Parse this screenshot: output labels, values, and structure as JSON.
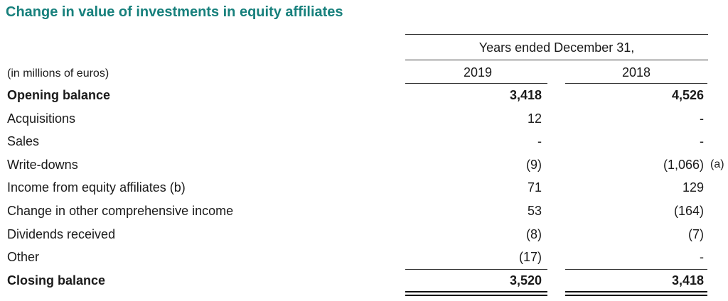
{
  "title": "Change in value of investments in equity affiliates",
  "header": {
    "period": "Years ended December 31,",
    "unit": "(in millions of euros)",
    "years": [
      "2019",
      "2018"
    ]
  },
  "table": {
    "rows": [
      {
        "label": "Opening balance",
        "values": [
          "3,418",
          "4,526"
        ]
      },
      {
        "label": "Acquisitions",
        "values": [
          "12",
          "-"
        ]
      },
      {
        "label": "Sales",
        "values": [
          "-",
          "-"
        ]
      },
      {
        "label": "Write-downs",
        "values": [
          "(9)",
          "(1,066)"
        ],
        "note": "(a)"
      },
      {
        "label": "Income from equity affiliates (b)",
        "values": [
          "71",
          "129"
        ]
      },
      {
        "label": "Change in other comprehensive income",
        "values": [
          "53",
          "(164)"
        ]
      },
      {
        "label": "Dividends received",
        "values": [
          "(8)",
          "(7)"
        ]
      },
      {
        "label": "Other",
        "values": [
          "(17)",
          "-"
        ]
      },
      {
        "label": "Closing balance",
        "values": [
          "3,520",
          "3,418"
        ]
      }
    ]
  }
}
